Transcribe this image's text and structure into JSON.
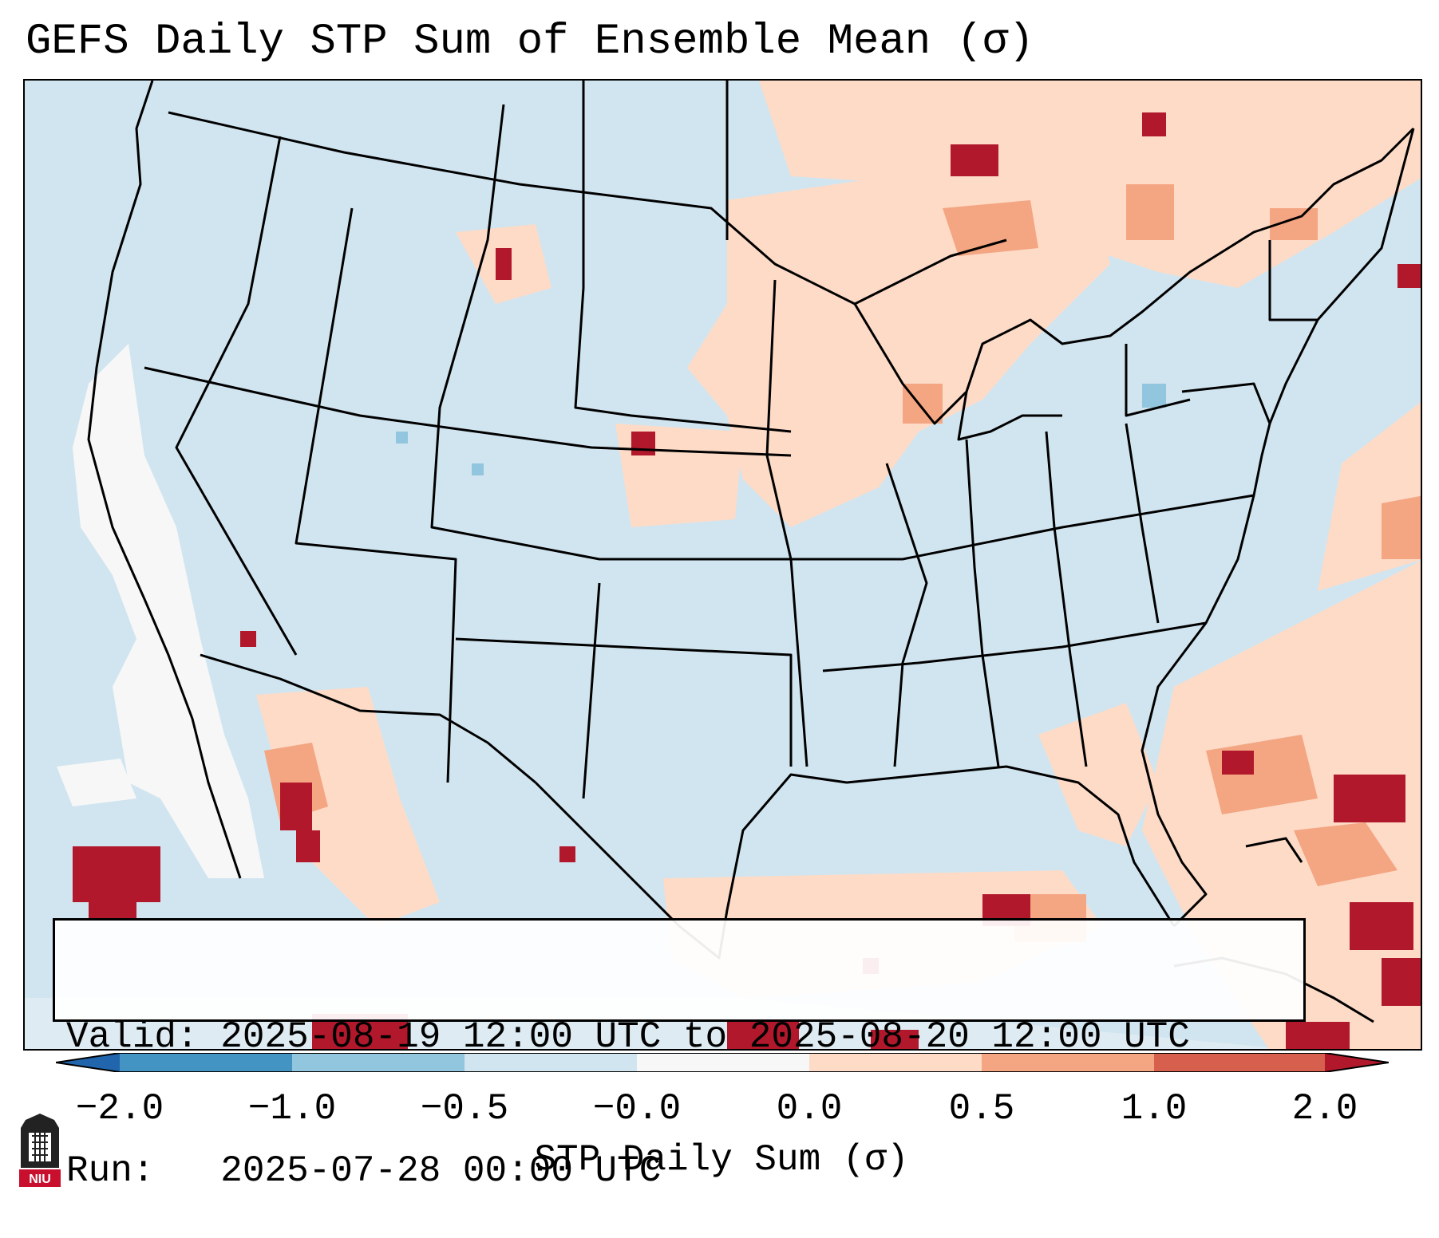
{
  "title": "GEFS Daily STP Sum of Ensemble Mean (σ)",
  "info": {
    "valid_label": "Valid:",
    "valid_value": "2025-08-19 12:00 UTC to 2025-08-20 12:00 UTC",
    "run_label": "Run:",
    "run_value": "2025-07-28 00:00 UTC"
  },
  "colorbar": {
    "label": "STP Daily Sum (σ)",
    "ticks": [
      "−2.0",
      "−1.0",
      "−0.5",
      "−0.0",
      "0.0",
      "0.5",
      "1.0",
      "2.0"
    ],
    "colors": [
      "#4393c3",
      "#92c5de",
      "#d1e5f0",
      "#f7f7f7",
      "#fddbc7",
      "#f4a582",
      "#d6604d"
    ],
    "extend_min_color": "#2166ac",
    "extend_max_color": "#b2182b"
  },
  "map": {
    "background_color": "#d1e5f0",
    "region": "Contiguous United States",
    "logo_text": "NIU"
  }
}
